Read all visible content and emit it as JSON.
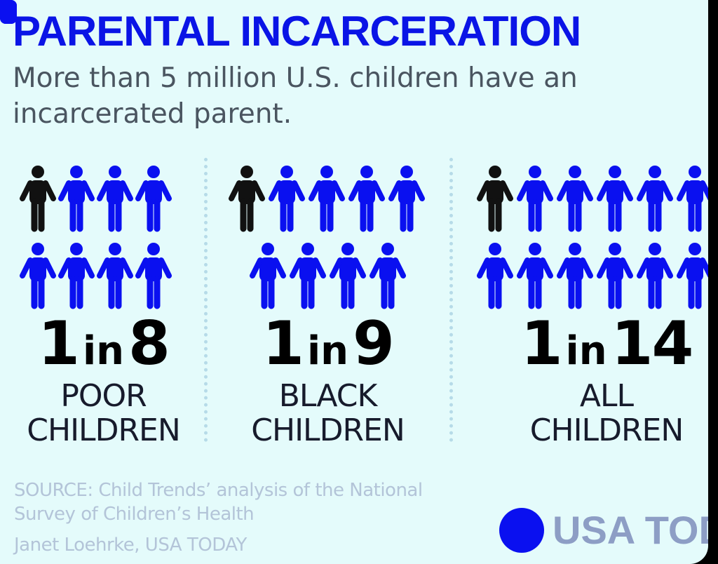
{
  "title": "PARENTAL INCARCERATION",
  "subtitle": "More than 5 million U.S. children have an incarcerated parent.",
  "chart_data": {
    "type": "pictograph",
    "title": "PARENTAL INCARCERATION",
    "subtitle": "More than 5 million U.S. children have an incarcerated parent.",
    "groups": [
      {
        "ratio_num": "1",
        "ratio_in": "in",
        "ratio_den": "8",
        "label_lines": [
          "POOR",
          "CHILDREN"
        ],
        "highlighted": 1,
        "total": 8
      },
      {
        "ratio_num": "1",
        "ratio_in": "in",
        "ratio_den": "9",
        "label_lines": [
          "BLACK",
          "CHILDREN"
        ],
        "highlighted": 1,
        "total": 9
      },
      {
        "ratio_num": "1",
        "ratio_in": "in",
        "ratio_den": "14",
        "label_lines": [
          "ALL",
          "CHILDREN"
        ],
        "highlighted": 1,
        "total": 14
      }
    ]
  },
  "source": {
    "lines": [
      "SOURCE:  Child Trends’ analysis of the National",
      "Survey of Children’s Health"
    ],
    "credit": "Janet Loehrke, USA TODAY"
  },
  "logo": {
    "text": "USA TODA"
  },
  "colors": {
    "background": "#e4fbfb",
    "title": "#0a14e6",
    "figure_blue": "#0a10f0",
    "figure_highlight": "#111111",
    "source_text": "#b3c4d8",
    "logo_blue": "#0a10f0",
    "logo_text": "#8d9ec5"
  }
}
